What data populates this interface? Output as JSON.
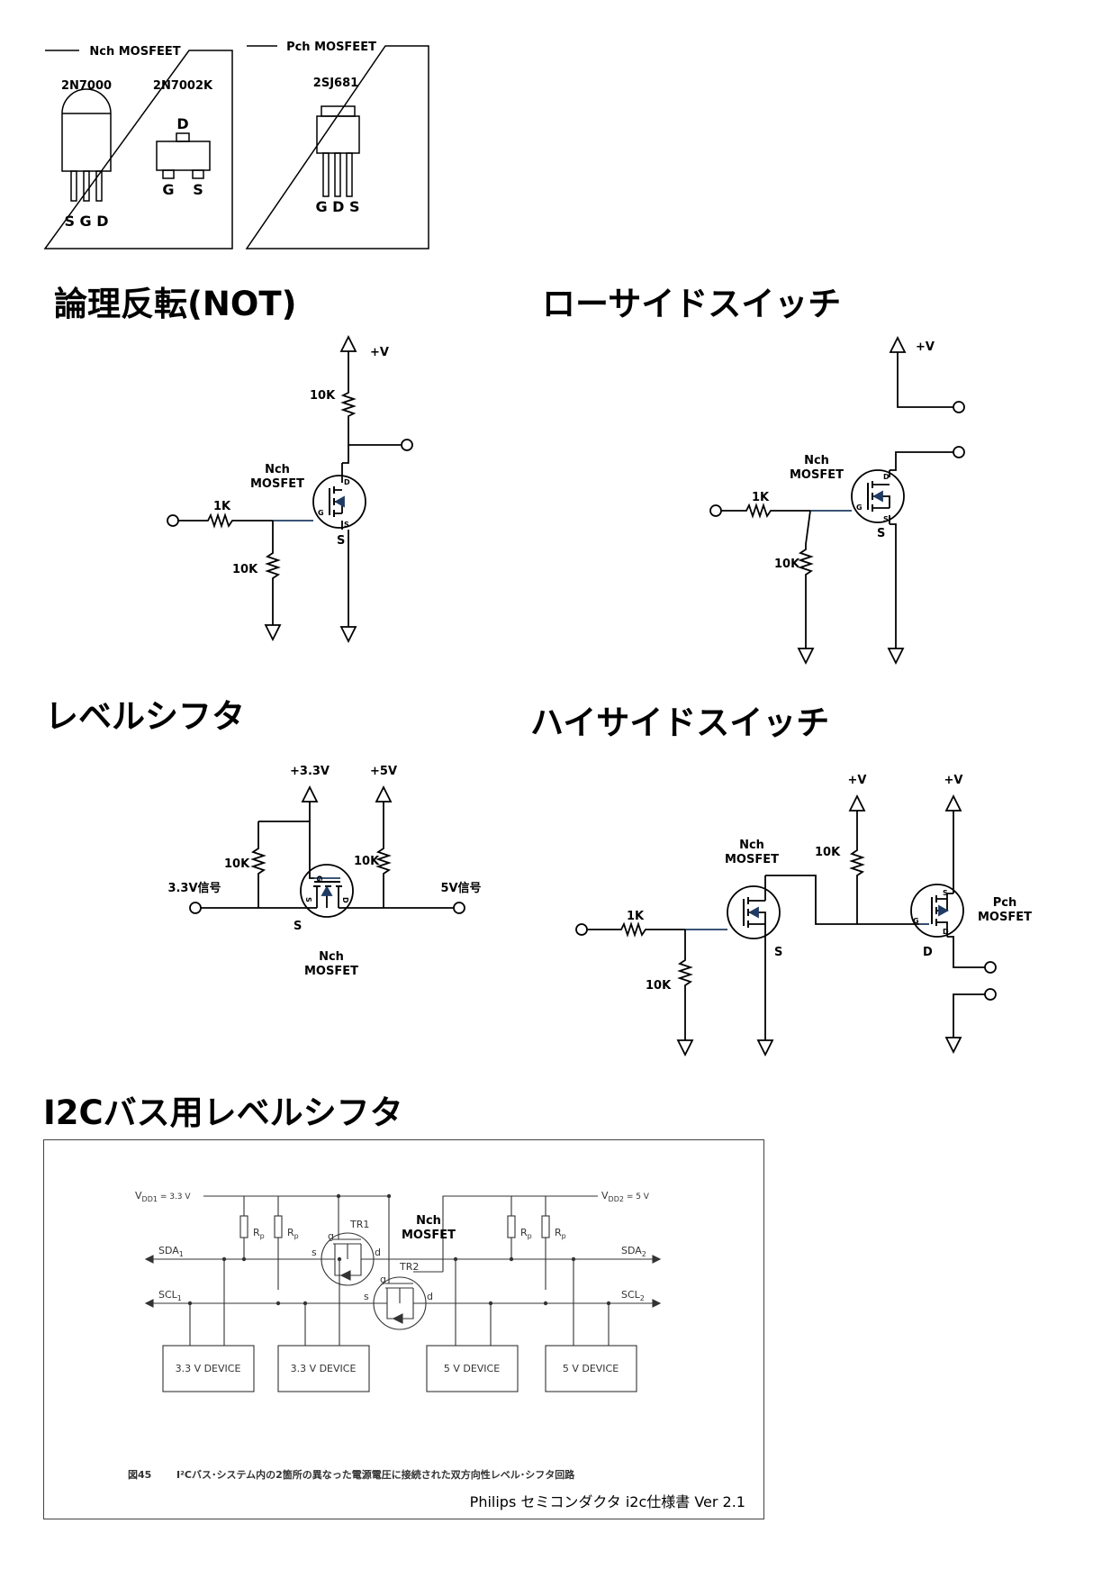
{
  "packages": {
    "nch_title": "Nch MOSFEET",
    "pch_title": "Pch MOSFEET",
    "p1_name": "2N7000",
    "p1_pins": "S G D",
    "p2_name": "2N7002K",
    "p2_d": "D",
    "p2_g": "G",
    "p2_s": "S",
    "p3_name": "2SJ681",
    "p3_pins": "G D S"
  },
  "sections": {
    "not": "論理反転(NOT)",
    "lowside": "ローサイドスイッチ",
    "levelshifter": "レベルシフタ",
    "highside": "ハイサイドスイッチ",
    "i2c": "I2Cバス用レベルシフタ"
  },
  "not_circuit": {
    "vplus": "+V",
    "r_pullup": "10K",
    "nch1": "Nch",
    "nch2": "MOSFET",
    "r_gate": "1K",
    "r_pulldown": "10K",
    "d": "D",
    "g": "G",
    "s": "S",
    "s_label": "S"
  },
  "lowside_circuit": {
    "vplus": "+V",
    "nch1": "Nch",
    "nch2": "MOSFET",
    "r_gate": "1K",
    "r_pulldown": "10K",
    "d": "D",
    "g": "G",
    "s": "S",
    "s_label": "S"
  },
  "level_circuit": {
    "v33": "+3.3V",
    "v5": "+5V",
    "r1": "10K",
    "r2": "10K",
    "sig33": "3.3V信号",
    "sig5": "5V信号",
    "s_label": "S",
    "nch1": "Nch",
    "nch2": "MOSFET",
    "g": "G",
    "s": "S",
    "d": "D"
  },
  "highside_circuit": {
    "vplus1": "+V",
    "vplus2": "+V",
    "nch1": "Nch",
    "nch2": "MOSFET",
    "r_mid": "10K",
    "pch1": "Pch",
    "pch2": "MOSFET",
    "r_gate": "1K",
    "r_pulldown": "10K",
    "s_label": "S",
    "d_label": "D",
    "g": "G",
    "s": "S",
    "d": "D"
  },
  "i2c": {
    "vdd1": "V",
    "vdd1_sub": "DD1",
    "vdd1_val": " = 3.3 V",
    "vdd2": "V",
    "vdd2_sub": "DD2",
    "vdd2_val": " = 5 V",
    "rp": "R",
    "rp_sub": "p",
    "tr1": "TR1",
    "tr2": "TR2",
    "nch1": "Nch",
    "nch2": "MOSFET",
    "g": "g",
    "s": "s",
    "d": "d",
    "sda": "SDA",
    "scl": "SCL",
    "sub1": "1",
    "sub2": "2",
    "dev1": "3.3 V DEVICE",
    "dev2": "3.3 V DEVICE",
    "dev3": "5 V DEVICE",
    "dev4": "5 V DEVICE",
    "caption_num": "図45",
    "caption": "I²Cバス･システム内の2箇所の異なった電源電圧に接続された双方向性レベル･シフタ回路",
    "source": "Philips セミコンダクタ i2c仕様書 Ver 2.1"
  },
  "colors": {
    "line": "#000000",
    "gate_wire": "#1f3b63"
  }
}
